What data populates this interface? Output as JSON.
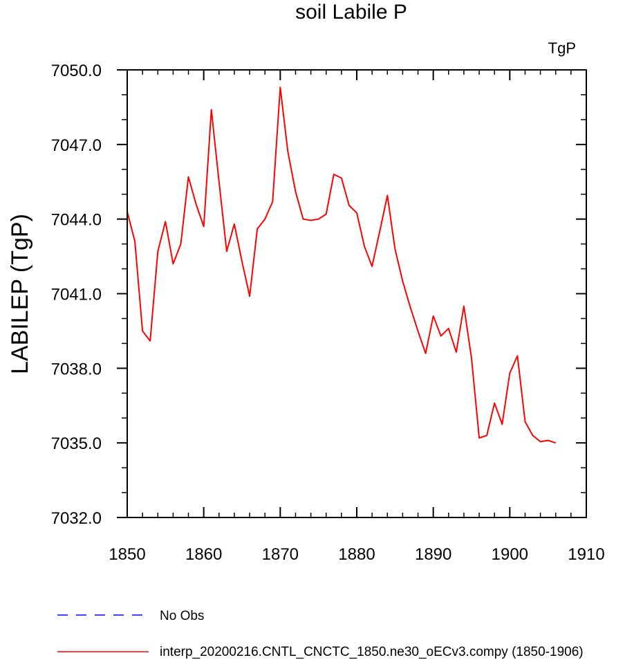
{
  "chart_data": {
    "type": "line",
    "title": "soil Labile P",
    "units_label": "TgP",
    "xlabel": "",
    "ylabel": "LABILEP  (TgP)",
    "xlim": [
      1850,
      1910
    ],
    "ylim": [
      7032.0,
      7050.0
    ],
    "x_ticks": [
      "1850",
      "1860",
      "1870",
      "1880",
      "1890",
      "1900",
      "1910"
    ],
    "y_ticks": [
      "7032.0",
      "7035.0",
      "7038.0",
      "7041.0",
      "7044.0",
      "7047.0",
      "7050.0"
    ],
    "x_tick_values": [
      1850,
      1860,
      1870,
      1880,
      1890,
      1900,
      1910
    ],
    "y_tick_values": [
      7032,
      7035,
      7038,
      7041,
      7044,
      7047,
      7050
    ],
    "grid": false,
    "legend_position": "bottom-left",
    "series": [
      {
        "name": "interp_20200216.CNTL_CNCTC_1850.ne30_oECv3.compy (1850-1906)",
        "color": "#ff0000",
        "style": "solid",
        "x": [
          1850,
          1851,
          1852,
          1853,
          1854,
          1855,
          1856,
          1857,
          1858,
          1859,
          1860,
          1861,
          1862,
          1863,
          1864,
          1865,
          1866,
          1867,
          1868,
          1869,
          1870,
          1871,
          1872,
          1873,
          1874,
          1875,
          1876,
          1877,
          1878,
          1879,
          1880,
          1881,
          1882,
          1883,
          1884,
          1885,
          1886,
          1887,
          1888,
          1889,
          1890,
          1891,
          1892,
          1893,
          1894,
          1895,
          1896,
          1897,
          1898,
          1899,
          1900,
          1901,
          1902,
          1903,
          1904,
          1905,
          1906
        ],
        "y": [
          7044.3,
          7043.1,
          7039.5,
          7039.1,
          7042.7,
          7043.9,
          7042.2,
          7043.0,
          7045.7,
          7044.6,
          7043.7,
          7048.4,
          7045.5,
          7042.7,
          7043.8,
          7042.3,
          7040.9,
          7043.6,
          7044.0,
          7044.7,
          7049.3,
          7046.7,
          7045.1,
          7044.0,
          7043.95,
          7044.0,
          7044.2,
          7045.8,
          7045.65,
          7044.55,
          7044.25,
          7042.9,
          7042.1,
          7043.5,
          7044.95,
          7042.8,
          7041.5,
          7040.45,
          7039.5,
          7038.6,
          7040.1,
          7039.3,
          7039.6,
          7038.65,
          7040.5,
          7038.4,
          7035.2,
          7035.3,
          7036.6,
          7035.75,
          7037.8,
          7038.5,
          7035.85,
          7035.3,
          7035.05,
          7035.1,
          7035.0
        ]
      }
    ],
    "legend": [
      {
        "label": "No Obs",
        "color": "#0000ff",
        "style": "dashed"
      },
      {
        "label": "interp_20200216.CNTL_CNCTC_1850.ne30_oECv3.compy (1850-1906)",
        "color": "#ff0000",
        "style": "solid"
      }
    ]
  }
}
